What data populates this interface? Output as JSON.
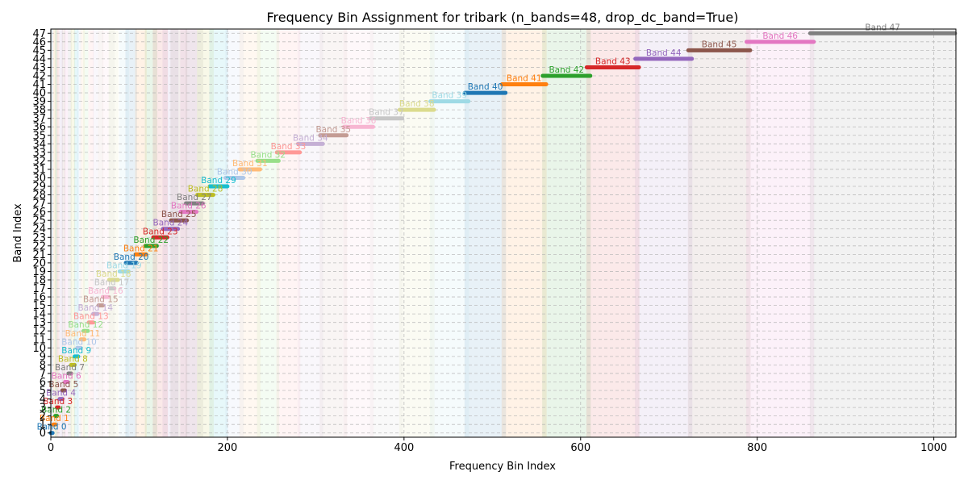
{
  "chart_data": {
    "type": "range",
    "title": "Frequency Bin Assignment for tribark (n_bands=48, drop_dc_band=True)",
    "xlabel": "Frequency Bin Index",
    "ylabel": "Band Index",
    "xlim": [
      0,
      1025
    ],
    "ylim": [
      -0.5,
      47.5
    ],
    "x_ticks": [
      0,
      200,
      400,
      600,
      800,
      1000
    ],
    "y_ticks": [
      0,
      1,
      2,
      3,
      4,
      5,
      6,
      7,
      8,
      9,
      10,
      11,
      12,
      13,
      14,
      15,
      16,
      17,
      18,
      19,
      20,
      21,
      22,
      23,
      24,
      25,
      26,
      27,
      28,
      29,
      30,
      31,
      32,
      33,
      34,
      35,
      36,
      37,
      38,
      39,
      40,
      41,
      42,
      43,
      44,
      45,
      46,
      47
    ],
    "grid": true,
    "palette": [
      "#1f77b4",
      "#ff7f0e",
      "#2ca02c",
      "#d62728",
      "#9467bd",
      "#8c564b",
      "#e377c2",
      "#7f7f7f",
      "#bcbd22",
      "#17becf",
      "#aec7e8",
      "#ffbb78",
      "#98df8a",
      "#ff9896",
      "#c5b0d5",
      "#c49c94",
      "#f7b6d2",
      "#c7c7c7",
      "#dbdb8d",
      "#9edae5"
    ],
    "bands": [
      {
        "label": "Band 0",
        "start": 0,
        "end": 2
      },
      {
        "label": "Band 1",
        "start": 3,
        "end": 5
      },
      {
        "label": "Band 2",
        "start": 5,
        "end": 7
      },
      {
        "label": "Band 3",
        "start": 7,
        "end": 9
      },
      {
        "label": "Band 4",
        "start": 10,
        "end": 13
      },
      {
        "label": "Band 5",
        "start": 13,
        "end": 16
      },
      {
        "label": "Band 6",
        "start": 16,
        "end": 19
      },
      {
        "label": "Band 7",
        "start": 20,
        "end": 23
      },
      {
        "label": "Band 8",
        "start": 23,
        "end": 27
      },
      {
        "label": "Band 9",
        "start": 27,
        "end": 31
      },
      {
        "label": "Band 10",
        "start": 30,
        "end": 34
      },
      {
        "label": "Band 11",
        "start": 34,
        "end": 38
      },
      {
        "label": "Band 12",
        "start": 37,
        "end": 42
      },
      {
        "label": "Band 13",
        "start": 43,
        "end": 48
      },
      {
        "label": "Band 14",
        "start": 48,
        "end": 53
      },
      {
        "label": "Band 15",
        "start": 54,
        "end": 59
      },
      {
        "label": "Band 16",
        "start": 59,
        "end": 65
      },
      {
        "label": "Band 17",
        "start": 66,
        "end": 72
      },
      {
        "label": "Band 18",
        "start": 66,
        "end": 76
      },
      {
        "label": "Band 19",
        "start": 78,
        "end": 88
      },
      {
        "label": "Band 20",
        "start": 85,
        "end": 97
      },
      {
        "label": "Band 21",
        "start": 96,
        "end": 108
      },
      {
        "label": "Band 22",
        "start": 107,
        "end": 120
      },
      {
        "label": "Band 23",
        "start": 116,
        "end": 132
      },
      {
        "label": "Band 24",
        "start": 127,
        "end": 144
      },
      {
        "label": "Band 25",
        "start": 136,
        "end": 154
      },
      {
        "label": "Band 26",
        "start": 147,
        "end": 165
      },
      {
        "label": "Band 27",
        "start": 153,
        "end": 172
      },
      {
        "label": "Band 28",
        "start": 166,
        "end": 184
      },
      {
        "label": "Band 29",
        "start": 180,
        "end": 200
      },
      {
        "label": "Band 30",
        "start": 198,
        "end": 218
      },
      {
        "label": "Band 31",
        "start": 214,
        "end": 237
      },
      {
        "label": "Band 32",
        "start": 234,
        "end": 258
      },
      {
        "label": "Band 33",
        "start": 256,
        "end": 282
      },
      {
        "label": "Band 34",
        "start": 280,
        "end": 308
      },
      {
        "label": "Band 35",
        "start": 305,
        "end": 335
      },
      {
        "label": "Band 36",
        "start": 332,
        "end": 365
      },
      {
        "label": "Band 37",
        "start": 362,
        "end": 398
      },
      {
        "label": "Band 38",
        "start": 395,
        "end": 434
      },
      {
        "label": "Band 39",
        "start": 430,
        "end": 473
      },
      {
        "label": "Band 40",
        "start": 469,
        "end": 515
      },
      {
        "label": "Band 41",
        "start": 511,
        "end": 561
      },
      {
        "label": "Band 42",
        "start": 557,
        "end": 611
      },
      {
        "label": "Band 43",
        "start": 607,
        "end": 666
      },
      {
        "label": "Band 44",
        "start": 662,
        "end": 726
      },
      {
        "label": "Band 45",
        "start": 722,
        "end": 792
      },
      {
        "label": "Band 46",
        "start": 788,
        "end": 864
      },
      {
        "label": "Band 47",
        "start": 860,
        "end": 1024
      }
    ]
  }
}
